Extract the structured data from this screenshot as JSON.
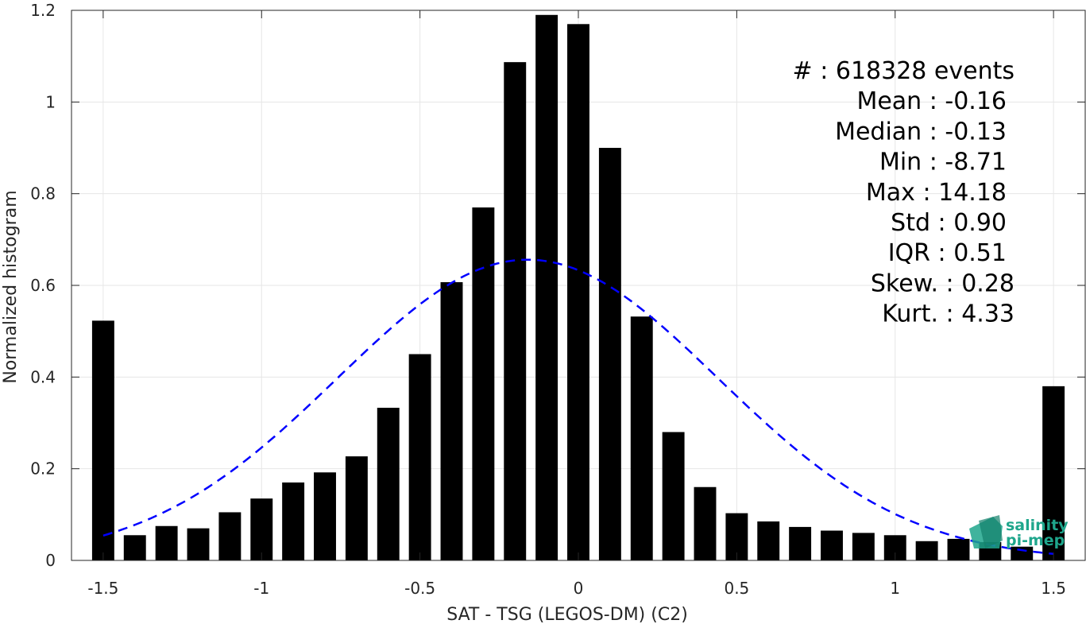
{
  "chart_data": {
    "type": "bar",
    "xlabel": "SAT - TSG (LEGOS-DM) (C2)",
    "ylabel": "Normalized histogram",
    "xlim": [
      -1.6,
      1.6
    ],
    "ylim": [
      0,
      1.2
    ],
    "xticks": [
      -1.5,
      -1,
      -0.5,
      0,
      0.5,
      1,
      1.5
    ],
    "xtick_labels": [
      "-1.5",
      "-1",
      "-0.5",
      "0",
      "0.5",
      "1",
      "1.5"
    ],
    "yticks": [
      0,
      0.2,
      0.4,
      0.6,
      0.8,
      1,
      1.2
    ],
    "ytick_labels": [
      "0",
      "0.2",
      "0.4",
      "0.6",
      "0.8",
      "1",
      "1.2"
    ],
    "grid": true,
    "bar_width": 0.07,
    "bars": {
      "x": [
        -1.5,
        -1.4,
        -1.3,
        -1.2,
        -1.1,
        -1.0,
        -0.9,
        -0.8,
        -0.7,
        -0.6,
        -0.5,
        -0.4,
        -0.3,
        -0.2,
        -0.1,
        0.0,
        0.1,
        0.2,
        0.3,
        0.4,
        0.5,
        0.6,
        0.7,
        0.8,
        0.9,
        1.0,
        1.1,
        1.2,
        1.3,
        1.4,
        1.5
      ],
      "values": [
        0.523,
        0.055,
        0.075,
        0.07,
        0.105,
        0.135,
        0.17,
        0.192,
        0.227,
        0.333,
        0.45,
        0.607,
        0.77,
        1.087,
        1.19,
        1.17,
        0.9,
        0.532,
        0.28,
        0.16,
        0.103,
        0.085,
        0.073,
        0.065,
        0.06,
        0.055,
        0.042,
        0.047,
        0.04,
        0.03,
        0.38
      ],
      "color": "#000000"
    },
    "fit": {
      "type": "gaussian",
      "mean": -0.16,
      "std": 0.6,
      "peak": 0.656,
      "x_range": [
        -1.5,
        1.5
      ],
      "color": "#0000ff",
      "style": "dashed"
    },
    "stats_lines": [
      "#  : 618328 events",
      "Mean : -0.16",
      "Median : -0.13",
      "Min : -8.71",
      "Max : 14.18",
      "Std : 0.90",
      "IQR : 0.51",
      "Skew. : 0.28",
      "Kurt. : 4.33"
    ]
  },
  "logo": {
    "line1": "salinity",
    "line2": "pi-mep",
    "color": "#1fa68c"
  }
}
